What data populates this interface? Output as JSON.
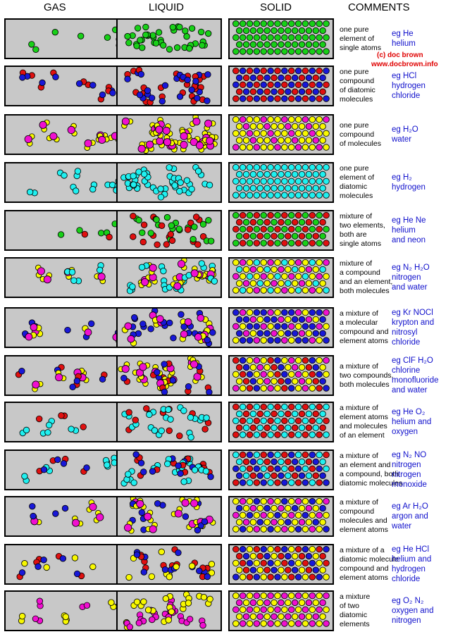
{
  "headers": {
    "gas": "GAS",
    "liquid": "LIQUID",
    "solid": "SOLID",
    "comments": "COMMENTS"
  },
  "credit": {
    "line1": "(c) doc brown",
    "line2": "www.docbrown.info"
  },
  "colors": {
    "box_bg": "#c8c8c8",
    "green": "#18d018",
    "red": "#e01010",
    "blue": "#1818d8",
    "yellow": "#f8f800",
    "magenta": "#f010d0",
    "cyan": "#20f0f0",
    "comment_text": "#000000",
    "example_text": "#1010cc",
    "credit_text": "#e00000"
  },
  "rows": [
    {
      "comment": [
        "one pure",
        "element of",
        "single atoms"
      ],
      "example": [
        "eg He",
        "helium"
      ],
      "particles": [
        "atom-green"
      ]
    },
    {
      "comment": [
        "one pure",
        "compound",
        "of diatomic",
        "molecules"
      ],
      "example": [
        "eg HCl",
        "hydrogen",
        "chloride"
      ],
      "particles": [
        "diatomic-red-blue"
      ]
    },
    {
      "comment": [
        "one pure",
        "compound",
        "of molecules"
      ],
      "example": [
        "eg H₂O",
        "water"
      ],
      "particles": [
        "water-molecule"
      ]
    },
    {
      "comment": [
        "one pure",
        "element of",
        "diatomic",
        "molecules"
      ],
      "example": [
        "eg H₂",
        "hydrogen"
      ],
      "particles": [
        "diatomic-cyan"
      ]
    },
    {
      "comment": [
        "mixture of",
        "two elements,",
        "both are",
        "single atoms"
      ],
      "example": [
        "eg He Ne",
        "helium",
        "and neon"
      ],
      "particles": [
        "atom-green",
        "atom-red"
      ]
    },
    {
      "comment": [
        "mixture of",
        "a compound",
        "and an element,",
        "both molecules"
      ],
      "example": [
        "eg N₂ H₂O",
        "nitrogen",
        "and water"
      ],
      "particles": [
        "water-molecule",
        "diatomic-cyan"
      ]
    },
    {
      "comment": [
        "a mixture of",
        "a molecular",
        "compound and",
        "element atoms"
      ],
      "example": [
        "eg Kr NOCl",
        "krypton and",
        "nitrosyl",
        "chloride"
      ],
      "particles": [
        "triatomic-nocl",
        "atom-blue"
      ]
    },
    {
      "comment": [
        "a mixture of",
        "two compounds,",
        "both molecules"
      ],
      "example": [
        "eg ClF H₂O",
        "chlorine",
        "monofluoride",
        "and water"
      ],
      "particles": [
        "diatomic-red-blue",
        "water-molecule"
      ]
    },
    {
      "comment": [
        "a mixture of",
        "element atoms",
        "and molecules",
        "of an element"
      ],
      "example": [
        "eg He O₂",
        "helium and",
        "oxygen"
      ],
      "particles": [
        "atom-red",
        "diatomic-cyan"
      ]
    },
    {
      "comment": [
        "a mixture of",
        "an element and",
        "a compound, both",
        "diatomic molecules"
      ],
      "example": [
        "eg N₂  NO",
        "nitrogen",
        "nitrogen",
        "monoxide"
      ],
      "particles": [
        "diatomic-cyan",
        "diatomic-blue"
      ]
    },
    {
      "comment": [
        "a mixture of",
        "compound",
        "molecules and",
        "element atoms"
      ],
      "example": [
        "eg Ar H₂O",
        "argon and",
        "water"
      ],
      "particles": [
        "water-molecule",
        "atom-blue"
      ]
    },
    {
      "comment": [
        "a mixture of a",
        "diatomic molecule",
        "compound and",
        "element atoms"
      ],
      "example": [
        "eg He HCl",
        "helium and",
        "hydrogen",
        "chloride"
      ],
      "particles": [
        "diatomic-red-blue",
        "atom-yellow"
      ]
    },
    {
      "comment": [
        "a mixture",
        "of two",
        "diatomic",
        "elements"
      ],
      "example": [
        "eg O₂  N₂",
        "oxygen and",
        "nitrogen"
      ],
      "particles": [
        "diatomic-yellow",
        "diatomic-magenta"
      ]
    }
  ]
}
